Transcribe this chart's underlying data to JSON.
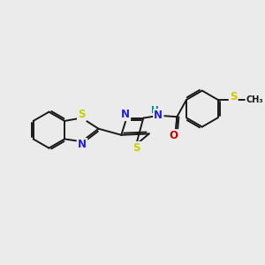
{
  "bg_color": "#ebebeb",
  "bond_color": "#1a1a1a",
  "S_color": "#cccc00",
  "N_color": "#2222cc",
  "O_color": "#cc0000",
  "H_color": "#008888",
  "bond_width": 1.4,
  "dbo": 0.07,
  "font_size": 8.5,
  "fig_width": 3.0,
  "fig_height": 3.0,
  "xlim": [
    0,
    10
  ],
  "ylim": [
    0,
    10
  ]
}
